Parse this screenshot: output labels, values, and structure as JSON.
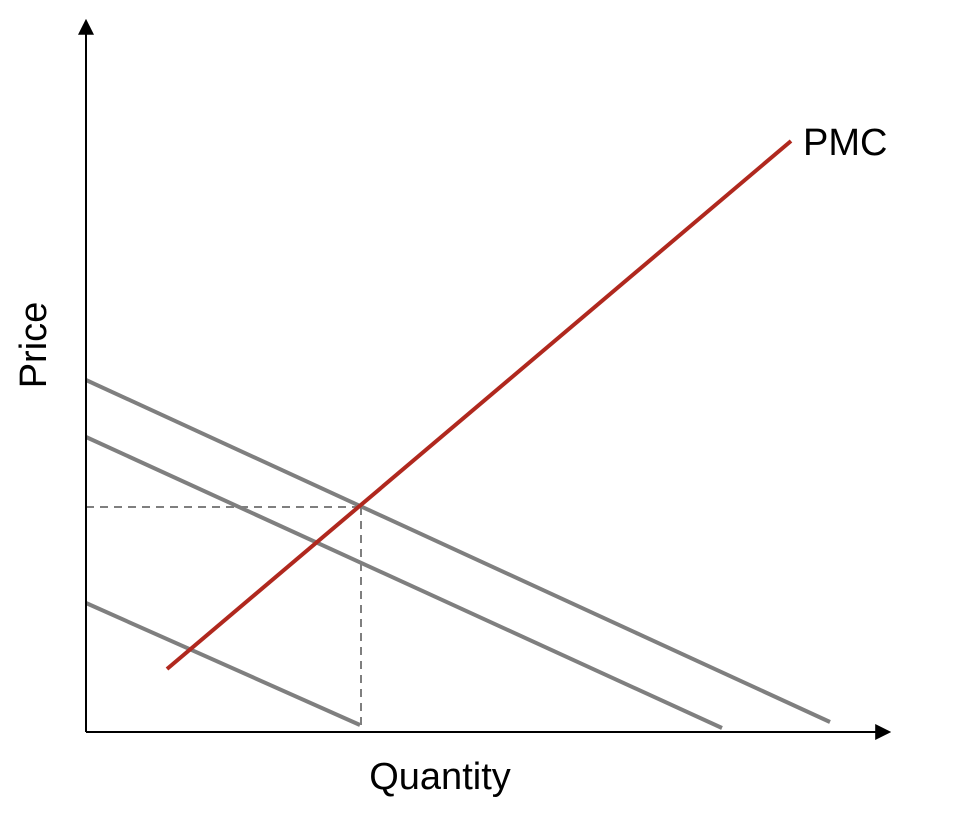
{
  "diagram": {
    "axes": {
      "x_label": "Quantity",
      "y_label": "Price"
    },
    "curves": {
      "pmc_label": "PMC"
    },
    "colors": {
      "pmc": "#b0281e",
      "demand": "#7f7f7f",
      "axis": "#000000",
      "guide": "#7f7f7f"
    }
  }
}
